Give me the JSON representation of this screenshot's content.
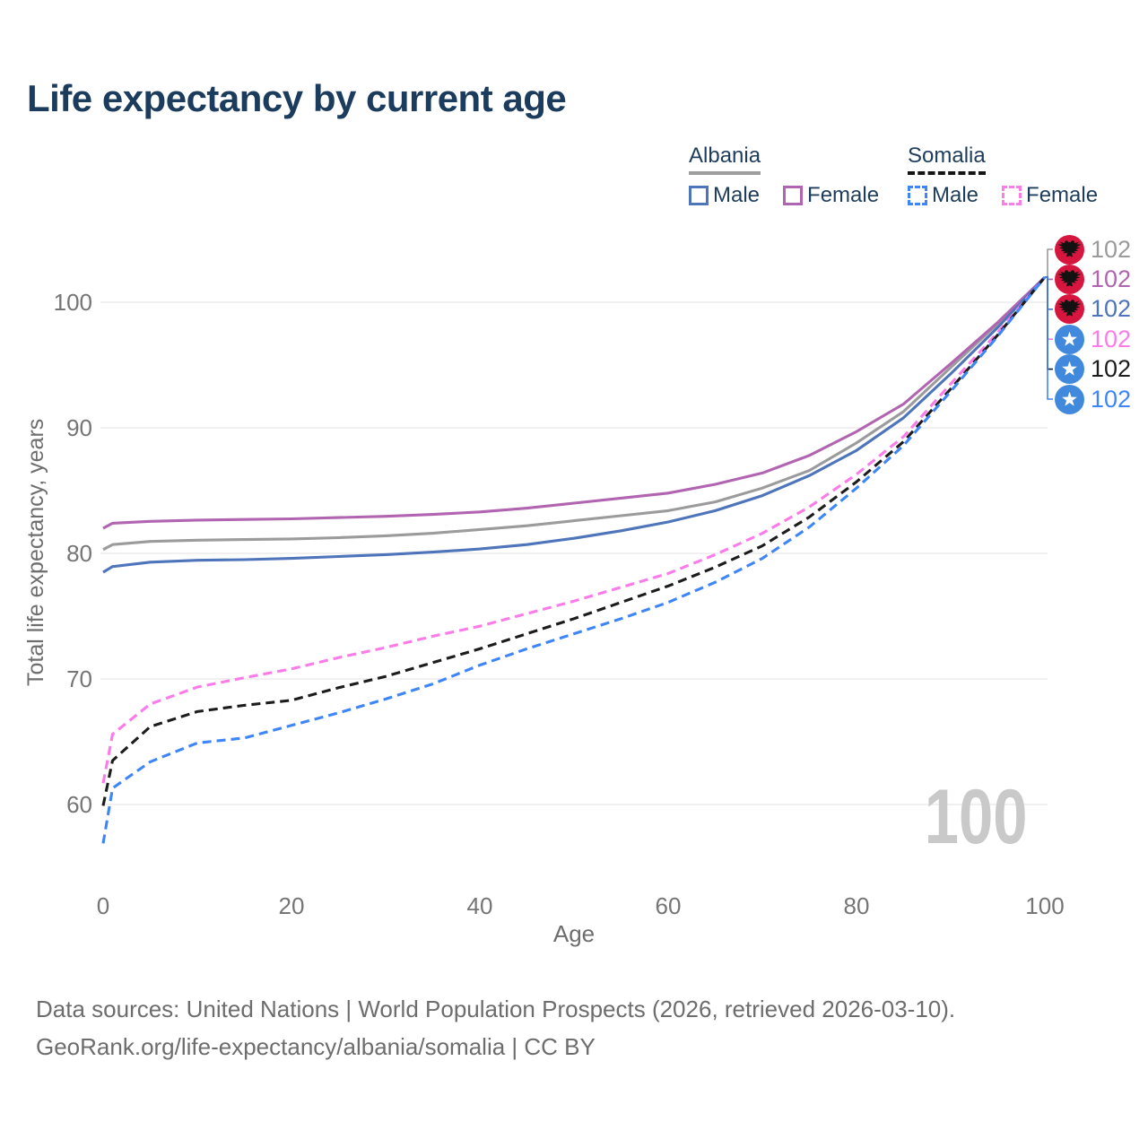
{
  "title": "Life expectancy by current age",
  "legend": {
    "groups": [
      {
        "label": "Albania",
        "underline": {
          "style": "solid",
          "color": "#9e9e9e"
        },
        "items": [
          {
            "label": "Male",
            "color": "#4e74ba",
            "dash": false
          },
          {
            "label": "Female",
            "color": "#b165b1",
            "dash": false
          }
        ]
      },
      {
        "label": "Somalia",
        "underline": {
          "style": "dashed",
          "color": "#141414"
        },
        "items": [
          {
            "label": "Male",
            "color": "#3e86f7",
            "dash": true
          },
          {
            "label": "Female",
            "color": "#fb7be9",
            "dash": true
          }
        ]
      }
    ]
  },
  "chart_data": {
    "type": "line",
    "title": "Life expectancy by current age",
    "xlabel": "Age",
    "ylabel": "Total life expectancy, years",
    "xlim": [
      0,
      100
    ],
    "ylim": [
      56,
      103
    ],
    "xticks": [
      0,
      20,
      40,
      60,
      80,
      100
    ],
    "yticks": [
      100,
      90,
      80,
      70,
      60
    ],
    "grid": "horizontal-only",
    "legend_position": "top-right",
    "age_counter_watermark": "100",
    "x": [
      0,
      1,
      5,
      10,
      15,
      20,
      25,
      30,
      35,
      40,
      45,
      50,
      55,
      60,
      65,
      70,
      75,
      80,
      85,
      90,
      95,
      100
    ],
    "series": [
      {
        "name": "Albania average",
        "country": "Albania",
        "flag": "albania",
        "color": "#9b9b9b",
        "dash": false,
        "end_label": "102",
        "values": [
          80.3,
          80.7,
          80.95,
          81.05,
          81.1,
          81.15,
          81.25,
          81.4,
          81.6,
          81.9,
          82.2,
          82.6,
          83.0,
          83.4,
          84.1,
          85.2,
          86.6,
          88.8,
          91.3,
          94.8,
          98.3,
          102
        ]
      },
      {
        "name": "Albania Female",
        "country": "Albania",
        "flag": "albania",
        "color": "#b165b1",
        "dash": false,
        "end_label": "102",
        "values": [
          82.0,
          82.4,
          82.55,
          82.65,
          82.7,
          82.75,
          82.85,
          82.95,
          83.1,
          83.3,
          83.6,
          84.0,
          84.4,
          84.8,
          85.5,
          86.4,
          87.8,
          89.7,
          91.9,
          95.1,
          98.4,
          102
        ]
      },
      {
        "name": "Albania Male",
        "country": "Albania",
        "flag": "albania",
        "color": "#4e74ba",
        "dash": false,
        "end_label": "102",
        "values": [
          78.5,
          78.95,
          79.3,
          79.45,
          79.5,
          79.6,
          79.75,
          79.9,
          80.1,
          80.35,
          80.7,
          81.2,
          81.8,
          82.5,
          83.4,
          84.6,
          86.2,
          88.2,
          90.8,
          94.3,
          98.0,
          102
        ]
      },
      {
        "name": "Somalia Female",
        "country": "Somalia",
        "flag": "somalia",
        "color": "#fb7be9",
        "dash": true,
        "end_label": "102",
        "values": [
          61.7,
          65.6,
          68.0,
          69.35,
          70.1,
          70.8,
          71.7,
          72.5,
          73.4,
          74.2,
          75.2,
          76.2,
          77.3,
          78.4,
          79.9,
          81.6,
          83.7,
          86.3,
          89.3,
          93.5,
          97.6,
          102
        ]
      },
      {
        "name": "Somalia average",
        "country": "Somalia",
        "flag": "somalia",
        "color": "#1c1c1c",
        "dash": true,
        "end_label": "102",
        "values": [
          59.9,
          63.5,
          66.2,
          67.4,
          67.9,
          68.3,
          69.3,
          70.2,
          71.3,
          72.4,
          73.6,
          74.8,
          76.1,
          77.4,
          78.9,
          80.6,
          82.9,
          85.7,
          88.9,
          93.1,
          97.4,
          102
        ]
      },
      {
        "name": "Somalia Male",
        "country": "Somalia",
        "flag": "somalia",
        "color": "#3e86f7",
        "dash": true,
        "end_label": "102",
        "values": [
          56.9,
          61.3,
          63.4,
          64.9,
          65.3,
          66.3,
          67.3,
          68.4,
          69.6,
          71.1,
          72.4,
          73.6,
          74.8,
          76.1,
          77.7,
          79.6,
          82.1,
          85.2,
          88.6,
          92.9,
          97.3,
          102
        ]
      }
    ]
  },
  "flag_colors": {
    "albania_red": "#d6163e",
    "somalia_blue": "#4189dd",
    "emblem_black": "#121212",
    "star_white": "#ffffff"
  },
  "axis_colors": {
    "grid": "#e7e7e7",
    "tick_text": "#757575",
    "axis_title": "#6e6e6e",
    "watermark": "#c9c9c9"
  },
  "footer": {
    "line1": "Data sources: United Nations | World Population Prospects (2026, retrieved 2026-03-10).",
    "line2": "GeoRank.org/life-expectancy/albania/somalia | CC BY"
  }
}
